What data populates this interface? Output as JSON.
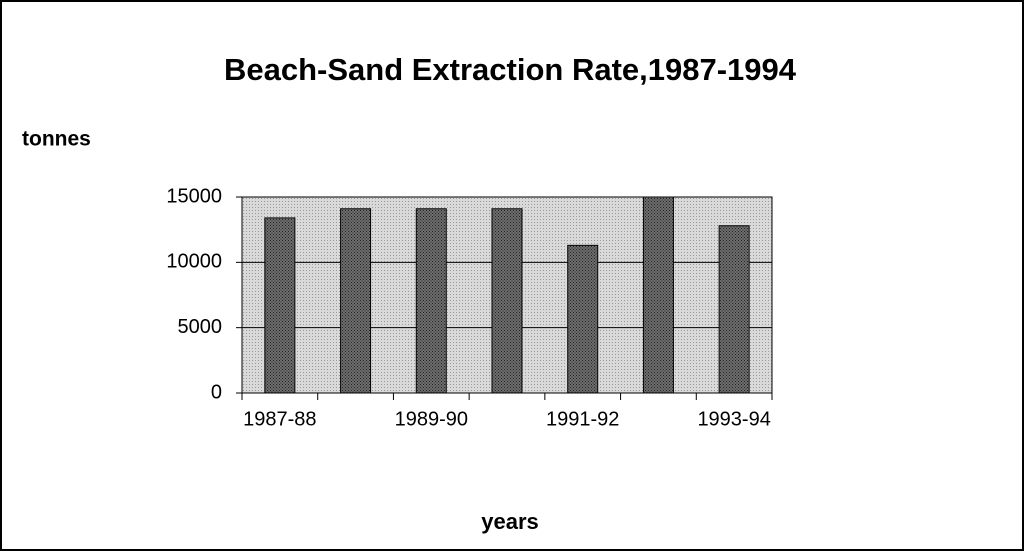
{
  "chart_data": {
    "type": "bar",
    "title": "Beach-Sand Extraction Rate,1987-1994",
    "y_label": "tonnes",
    "x_label": "years",
    "categories": [
      "1987-88",
      null,
      "1989-90",
      null,
      "1991-92",
      null,
      "1993-94"
    ],
    "values": [
      13400,
      14100,
      14100,
      14100,
      11300,
      15000,
      12800
    ],
    "color": "#6e6e6e",
    "plot_background": "#d9d9d9",
    "ylim": [
      0,
      15000
    ],
    "yticks": [
      0,
      5000,
      10000,
      15000
    ],
    "grid": true
  }
}
